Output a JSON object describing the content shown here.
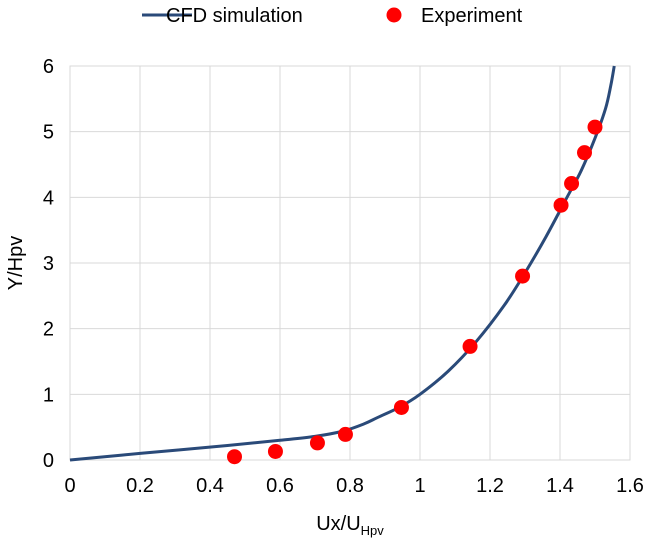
{
  "chart_data": {
    "type": "scatter",
    "title": "",
    "xlabel_main": "Ux/U",
    "xlabel_sub": "Hpv",
    "ylabel": "Y/Hpv",
    "xlim": [
      0,
      1.6
    ],
    "ylim": [
      0,
      6
    ],
    "xticks": [
      "0",
      "0.2",
      "0.4",
      "0.6",
      "0.8",
      "1",
      "1.2",
      "1.4",
      "1.6"
    ],
    "yticks": [
      "0",
      "1",
      "2",
      "3",
      "4",
      "5",
      "6"
    ],
    "grid": true,
    "legend_position": "top",
    "colors": {
      "line": "#2a4a79",
      "points": "#ff0000",
      "grid": "#d9d9d9"
    },
    "series": [
      {
        "name": "CFD simulation",
        "kind": "line",
        "x": [
          0,
          0.2,
          0.45,
          0.6,
          0.7,
          0.78,
          0.84,
          0.88,
          0.94,
          1.0,
          1.08,
          1.16,
          1.24,
          1.3,
          1.36,
          1.42,
          1.46,
          1.5,
          1.53,
          1.545,
          1.555
        ],
        "y": [
          0,
          0.1,
          0.22,
          0.3,
          0.36,
          0.44,
          0.55,
          0.65,
          0.8,
          1.0,
          1.35,
          1.8,
          2.35,
          2.85,
          3.4,
          4.0,
          4.4,
          4.9,
          5.35,
          5.7,
          6.0
        ]
      },
      {
        "name": "Experiment",
        "kind": "scatter",
        "x": [
          0.47,
          0.587,
          0.707,
          0.787,
          0.947,
          1.143,
          1.293,
          1.403,
          1.433,
          1.47,
          1.5
        ],
        "y": [
          0.05,
          0.13,
          0.26,
          0.39,
          0.8,
          1.73,
          2.8,
          3.88,
          4.21,
          4.68,
          5.07
        ]
      }
    ]
  }
}
